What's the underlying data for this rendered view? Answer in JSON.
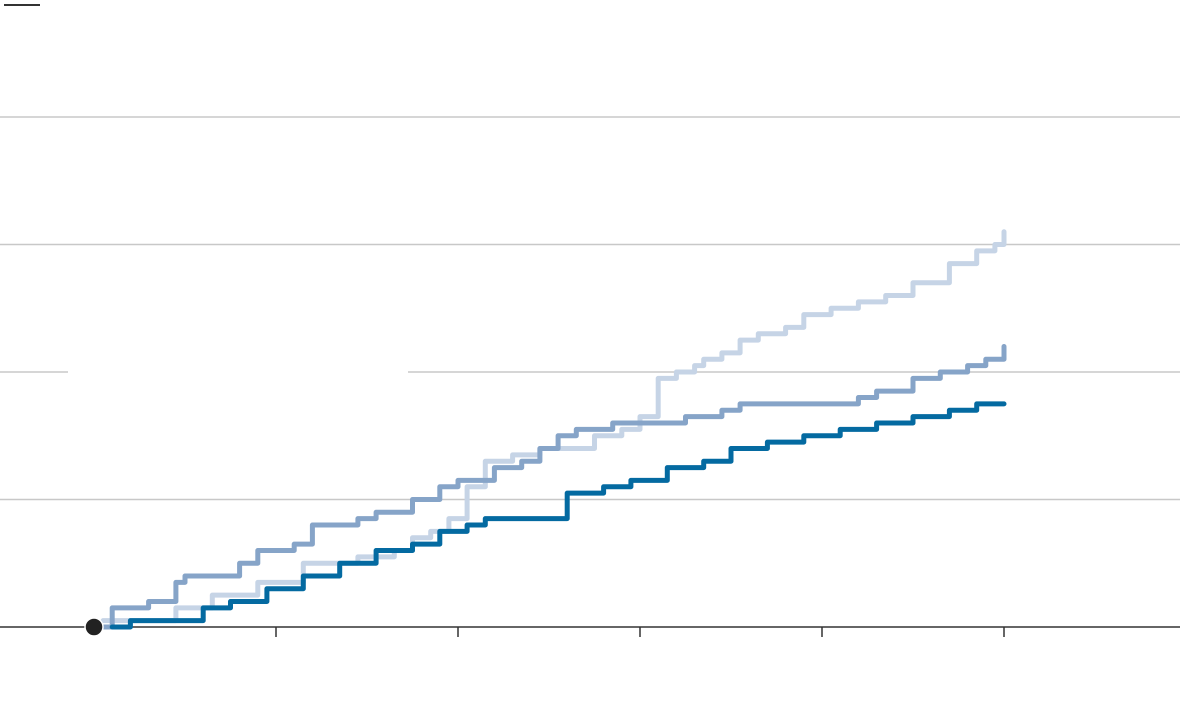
{
  "chart_data": {
    "type": "line",
    "title": "",
    "xlabel": "",
    "ylabel": "",
    "xlim": [
      0,
      6
    ],
    "ylim": [
      0,
      4
    ],
    "grid": true,
    "gridline_values": [
      1,
      2,
      3,
      4
    ],
    "x_tick_values": [
      1,
      2,
      3,
      4,
      5
    ],
    "origin_marker": [
      0,
      0
    ],
    "colors": {
      "series_dark": "#046aa1",
      "series_mid": "#86a4c8",
      "series_light": "#c6d4e6",
      "grid": "#c8c8c8",
      "axis": "#333333",
      "marker": "#222222"
    },
    "series": [
      {
        "name": "series-light",
        "color": "#c6d4e6",
        "x": [
          0.05,
          0.45,
          0.65,
          0.9,
          1.1,
          1.15,
          1.3,
          1.45,
          1.65,
          1.75,
          1.85,
          1.95,
          2.05,
          2.15,
          2.3,
          2.45,
          2.55,
          2.75,
          2.9,
          3.0,
          3.1,
          3.2,
          3.3,
          3.35,
          3.45,
          3.55,
          3.65,
          3.8,
          3.9,
          4.05,
          4.2,
          4.35,
          4.5,
          4.7,
          4.85,
          4.95,
          5.0
        ],
        "y": [
          0.05,
          0.15,
          0.25,
          0.35,
          0.35,
          0.5,
          0.5,
          0.55,
          0.6,
          0.7,
          0.75,
          0.85,
          1.1,
          1.3,
          1.35,
          1.4,
          1.4,
          1.5,
          1.55,
          1.65,
          1.95,
          2.0,
          2.05,
          2.1,
          2.15,
          2.25,
          2.3,
          2.35,
          2.45,
          2.5,
          2.55,
          2.6,
          2.7,
          2.85,
          2.95,
          3.0,
          3.1
        ]
      },
      {
        "name": "series-mid",
        "color": "#86a4c8",
        "x": [
          0.05,
          0.1,
          0.3,
          0.45,
          0.5,
          0.8,
          0.9,
          1.1,
          1.2,
          1.45,
          1.55,
          1.75,
          1.9,
          2.0,
          2.2,
          2.35,
          2.45,
          2.55,
          2.65,
          2.85,
          3.05,
          3.25,
          3.45,
          3.55,
          4.0,
          4.2,
          4.3,
          4.5,
          4.65,
          4.8,
          4.9,
          5.0
        ],
        "y": [
          0,
          0.15,
          0.2,
          0.35,
          0.4,
          0.5,
          0.6,
          0.65,
          0.8,
          0.85,
          0.9,
          1.0,
          1.1,
          1.15,
          1.25,
          1.3,
          1.4,
          1.5,
          1.55,
          1.6,
          1.6,
          1.65,
          1.7,
          1.75,
          1.75,
          1.8,
          1.85,
          1.95,
          2.0,
          2.05,
          2.1,
          2.2
        ]
      },
      {
        "name": "series-dark",
        "color": "#046aa1",
        "x": [
          0.1,
          0.2,
          0.5,
          0.6,
          0.75,
          0.95,
          1.0,
          1.15,
          1.35,
          1.55,
          1.75,
          1.9,
          2.05,
          2.15,
          2.45,
          2.6,
          2.8,
          2.95,
          3.15,
          3.35,
          3.5,
          3.7,
          3.9,
          4.1,
          4.3,
          4.5,
          4.7,
          4.85,
          5.0
        ],
        "y": [
          0,
          0.05,
          0.05,
          0.15,
          0.2,
          0.3,
          0.3,
          0.4,
          0.5,
          0.6,
          0.65,
          0.75,
          0.8,
          0.85,
          0.85,
          1.05,
          1.1,
          1.15,
          1.25,
          1.3,
          1.4,
          1.45,
          1.5,
          1.55,
          1.6,
          1.65,
          1.7,
          1.75,
          1.75
        ]
      }
    ]
  }
}
